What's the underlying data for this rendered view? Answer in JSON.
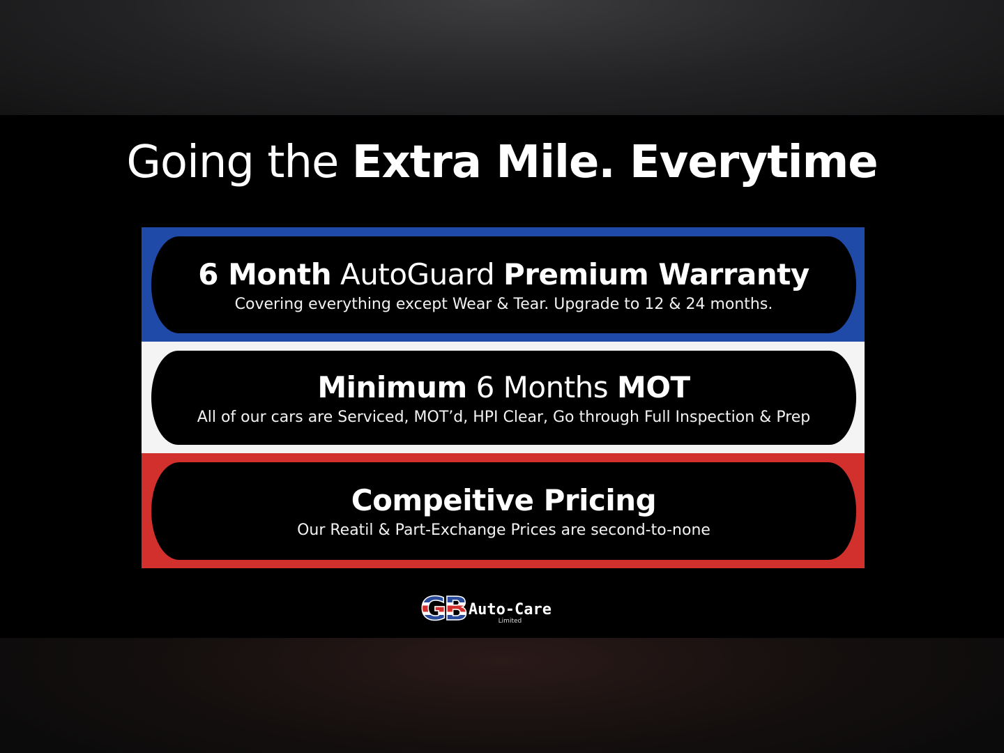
{
  "headline": {
    "light": "Going the ",
    "bold": "Extra Mile. Everytime"
  },
  "colors": {
    "blue": "#1f4aa8",
    "white": "#f4f4f4",
    "red": "#d2302c",
    "background": "#000000"
  },
  "panels": [
    {
      "title_parts": [
        "6 Month",
        " AutoGuard ",
        "Premium Warranty"
      ],
      "subtitle": "Covering everything except Wear & Tear. Upgrade to 12 & 24 months."
    },
    {
      "title_parts": [
        "Minimum",
        " 6 Months ",
        "MOT"
      ],
      "subtitle": "All of our cars are Serviced, MOT’d, HPI Clear, Go through Full Inspection & Prep"
    },
    {
      "title_parts": [
        "Compeitive Pricing"
      ],
      "subtitle": "Our Reatil & Part-Exchange Prices are second-to-none"
    }
  ],
  "logo": {
    "mark": "GB",
    "name": "Auto-Care",
    "suffix": "Limited"
  }
}
